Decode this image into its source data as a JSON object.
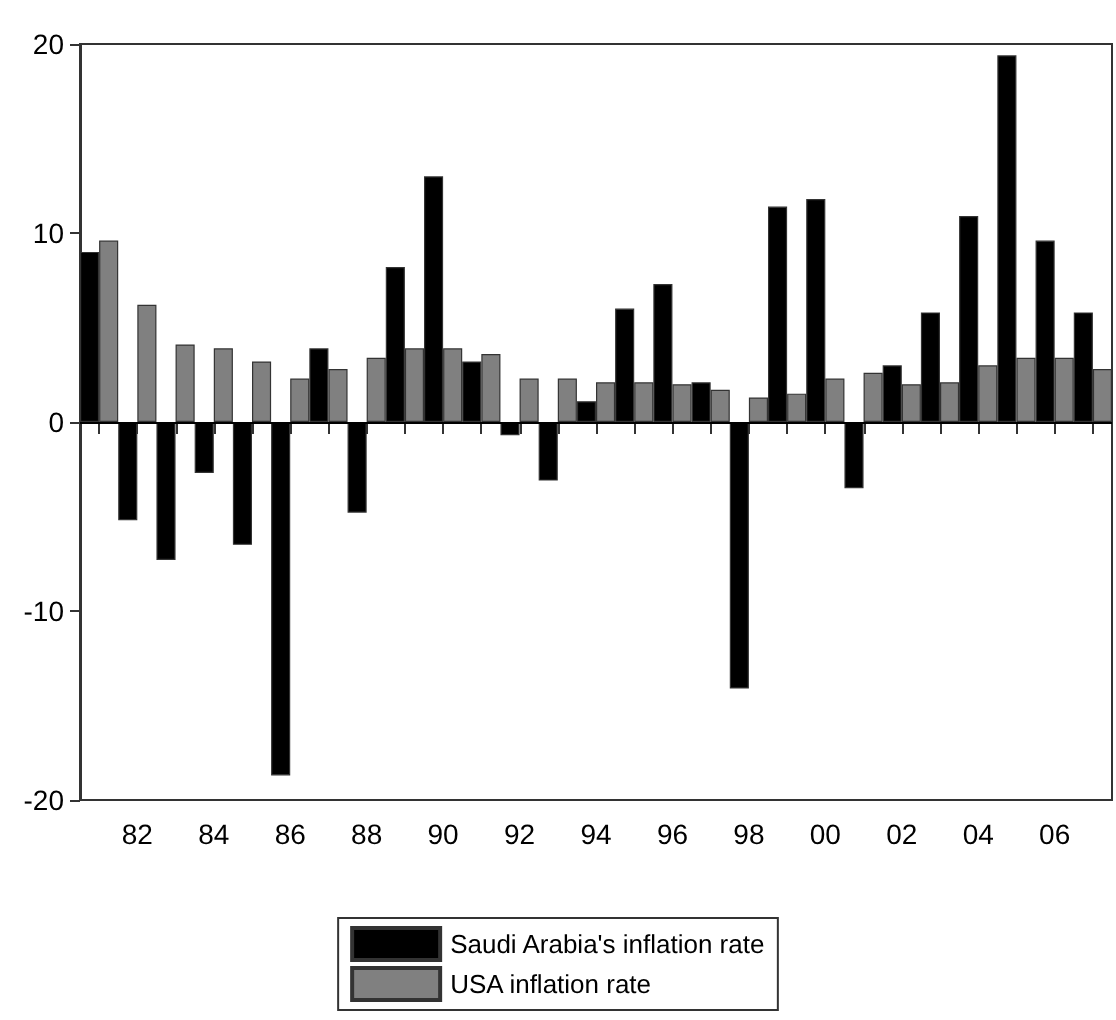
{
  "chart_data": {
    "type": "bar",
    "categories": [
      null,
      "82",
      null,
      "84",
      null,
      "86",
      null,
      "88",
      null,
      "90",
      null,
      "92",
      null,
      "94",
      null,
      "96",
      null,
      "98",
      null,
      "00",
      null,
      "02",
      null,
      "04",
      null,
      "06",
      null
    ],
    "series": [
      {
        "name": "Saudi Arabia's inflation rate",
        "color": "#000000",
        "values": [
          9.0,
          -5.2,
          -7.3,
          -2.7,
          -6.5,
          -18.7,
          3.9,
          -4.8,
          8.2,
          13.0,
          3.2,
          -0.7,
          -3.1,
          1.1,
          6.0,
          7.3,
          2.1,
          -14.1,
          11.4,
          11.8,
          -3.5,
          3.0,
          5.8,
          10.9,
          19.4,
          9.6,
          5.8
        ]
      },
      {
        "name": "USA inflation rate",
        "color": "#808080",
        "values": [
          9.6,
          6.2,
          4.1,
          3.9,
          3.2,
          2.3,
          2.8,
          3.4,
          3.9,
          3.9,
          3.6,
          2.3,
          2.3,
          2.1,
          2.1,
          2.0,
          1.7,
          1.3,
          1.5,
          2.3,
          2.6,
          2.0,
          2.1,
          3.0,
          3.4,
          3.4,
          2.8
        ]
      }
    ],
    "ylim": [
      -20,
      20
    ],
    "yticks": [
      -20,
      -10,
      0,
      10,
      20
    ],
    "ref_lines": [
      {
        "axis": "y",
        "value": 0,
        "label": null
      }
    ],
    "grid": false,
    "legend": "bottom"
  }
}
